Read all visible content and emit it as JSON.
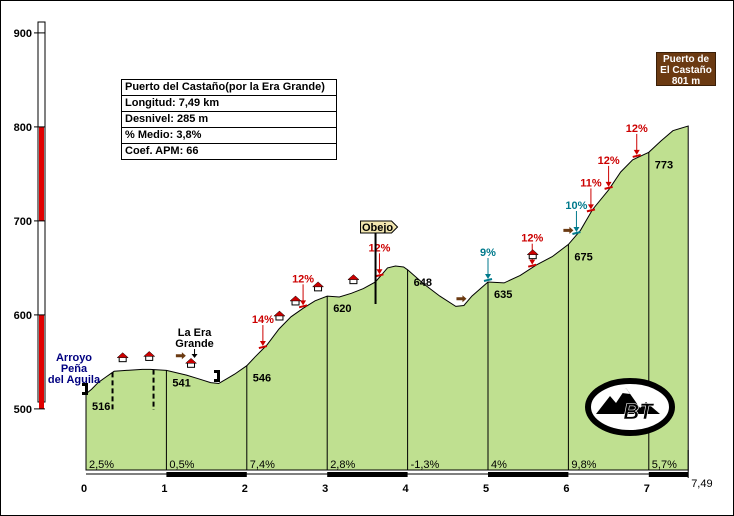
{
  "chart_data": {
    "type": "area",
    "title": "Puerto del Castaño(por la Era Grande)",
    "info": {
      "title": "Puerto del Castaño(por la Era Grande)",
      "longitud": "Longitud: 7,49 km",
      "desnivel": "Desnivel: 285 m",
      "medio": "% Medio: 3,8%",
      "coef": "Coef. APM: 66"
    },
    "summit_sign": [
      "Puerto de",
      "El Castaño",
      "801 m"
    ],
    "x_ticks": [
      "0",
      "1",
      "2",
      "3",
      "4",
      "5",
      "6",
      "7"
    ],
    "x_end_label": "7,49",
    "y_ticks": [
      "900",
      "800",
      "700",
      "600",
      "500"
    ],
    "xlim": [
      0,
      7.49
    ],
    "ylim": [
      435,
      900
    ],
    "profile": [
      [
        0,
        516
      ],
      [
        0.07,
        521
      ],
      [
        0.15,
        528
      ],
      [
        0.25,
        534
      ],
      [
        0.35,
        540
      ],
      [
        0.5,
        541
      ],
      [
        0.7,
        542
      ],
      [
        0.8,
        542
      ],
      [
        1.0,
        541
      ],
      [
        1.1,
        539
      ],
      [
        1.25,
        536
      ],
      [
        1.4,
        532
      ],
      [
        1.55,
        528
      ],
      [
        1.65,
        527
      ],
      [
        1.75,
        532
      ],
      [
        1.85,
        537
      ],
      [
        2.0,
        546
      ],
      [
        2.1,
        555
      ],
      [
        2.25,
        568
      ],
      [
        2.4,
        585
      ],
      [
        2.55,
        598
      ],
      [
        2.7,
        607
      ],
      [
        2.85,
        615
      ],
      [
        3.0,
        620
      ],
      [
        3.15,
        619
      ],
      [
        3.3,
        623
      ],
      [
        3.45,
        628
      ],
      [
        3.6,
        635
      ],
      [
        3.75,
        650
      ],
      [
        3.85,
        652
      ],
      [
        3.95,
        651
      ],
      [
        4.0,
        648
      ],
      [
        4.2,
        633
      ],
      [
        4.4,
        620
      ],
      [
        4.6,
        609
      ],
      [
        4.7,
        610
      ],
      [
        4.8,
        620
      ],
      [
        5.0,
        635
      ],
      [
        5.2,
        634
      ],
      [
        5.4,
        642
      ],
      [
        5.6,
        653
      ],
      [
        5.8,
        662
      ],
      [
        6.0,
        675
      ],
      [
        6.15,
        690
      ],
      [
        6.3,
        712
      ],
      [
        6.5,
        733
      ],
      [
        6.65,
        752
      ],
      [
        6.8,
        765
      ],
      [
        7.0,
        773
      ],
      [
        7.15,
        785
      ],
      [
        7.3,
        796
      ],
      [
        7.49,
        801
      ]
    ],
    "km_altitudes": [
      {
        "x": 0,
        "label": "516"
      },
      {
        "x": 1,
        "label": "541"
      },
      {
        "x": 2,
        "label": "546"
      },
      {
        "x": 3,
        "label": "620"
      },
      {
        "x": 4,
        "label": "648"
      },
      {
        "x": 5,
        "label": "635"
      },
      {
        "x": 6,
        "label": "675"
      },
      {
        "x": 7,
        "label": "773"
      }
    ],
    "segment_gradients": [
      "2,5%",
      "0,5%",
      "7,4%",
      "2,8%",
      "-1,3%",
      "4%",
      "9,8%",
      "5,7%"
    ],
    "ramps": [
      {
        "x": 2.2,
        "label": "14%",
        "color": "#cc0000"
      },
      {
        "x": 2.7,
        "label": "12%",
        "color": "#cc0000"
      },
      {
        "x": 3.65,
        "label": "12%",
        "color": "#cc0000"
      },
      {
        "x": 5.0,
        "label": "9%",
        "color": "#007a8c"
      },
      {
        "x": 5.55,
        "label": "12%",
        "color": "#cc0000"
      },
      {
        "x": 6.1,
        "label": "10%",
        "color": "#007a8c"
      },
      {
        "x": 6.28,
        "label": "11%",
        "color": "#cc0000"
      },
      {
        "x": 6.5,
        "label": "12%",
        "color": "#cc0000"
      },
      {
        "x": 6.85,
        "label": "12%",
        "color": "#cc0000"
      }
    ],
    "places": [
      {
        "x": 0.0,
        "lines": [
          "Arroyo",
          "Peña",
          "del Aguila"
        ],
        "color": "#000080"
      },
      {
        "x": 1.35,
        "lines": [
          "La Era",
          "Grande"
        ],
        "color": "#000000"
      }
    ],
    "village_sign": {
      "x": 3.85,
      "label": "Obejo"
    },
    "colors": {
      "fill": "#bfe090",
      "outline": "#000000",
      "scale_red": "#e00000",
      "steep_red": "#cc0000",
      "moderate_teal": "#007a8c",
      "sign_brown": "#6b3a12",
      "summit_sign_bg": "#6b3a12"
    },
    "logo_text": "BT"
  }
}
